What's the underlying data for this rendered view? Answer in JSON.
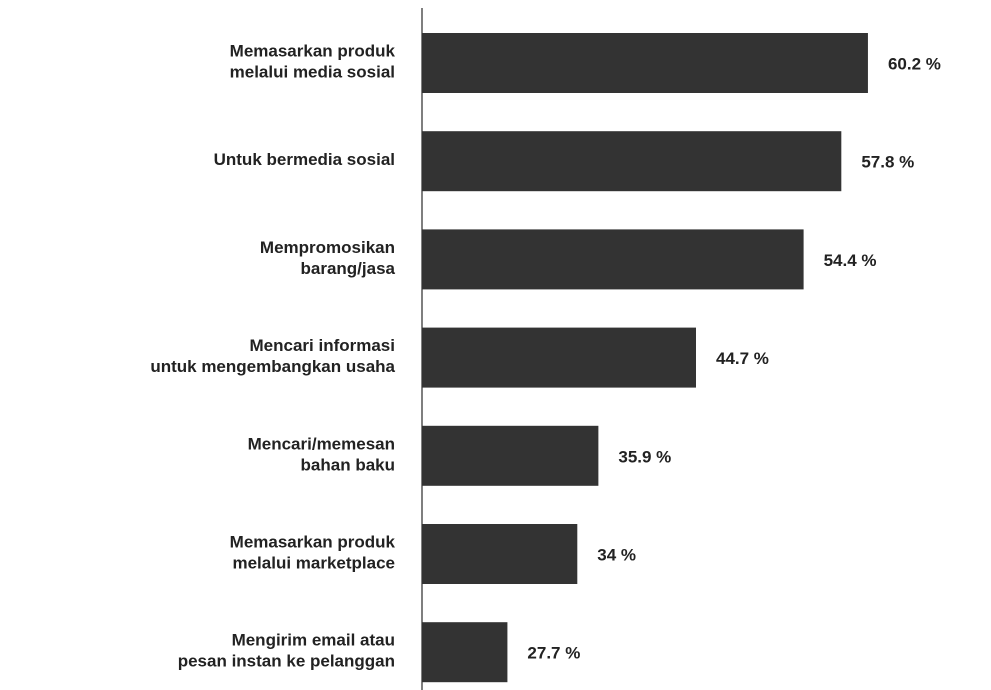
{
  "chart_data": {
    "type": "barh",
    "categories": [
      "Memasarkan produk\nmelalui media sosial",
      "Untuk bermedia sosial",
      "Mempromosikan\nbarang/jasa",
      "Mencari informasi\nuntuk mengembangkan usaha",
      "Mencari/memesan\nbahan baku",
      "Memasarkan produk\nmelalui marketplace",
      "Mengirim email atau\npesan instan ke pelanggan"
    ],
    "values": [
      60.2,
      57.8,
      54.4,
      44.7,
      35.9,
      34,
      27.7
    ],
    "value_labels": [
      "60.2 %",
      "57.8 %",
      "54.4 %",
      "44.7 %",
      "35.9 %",
      "34 %",
      "27.7 %"
    ],
    "color": "#333333",
    "xlim": [
      20,
      63
    ]
  }
}
